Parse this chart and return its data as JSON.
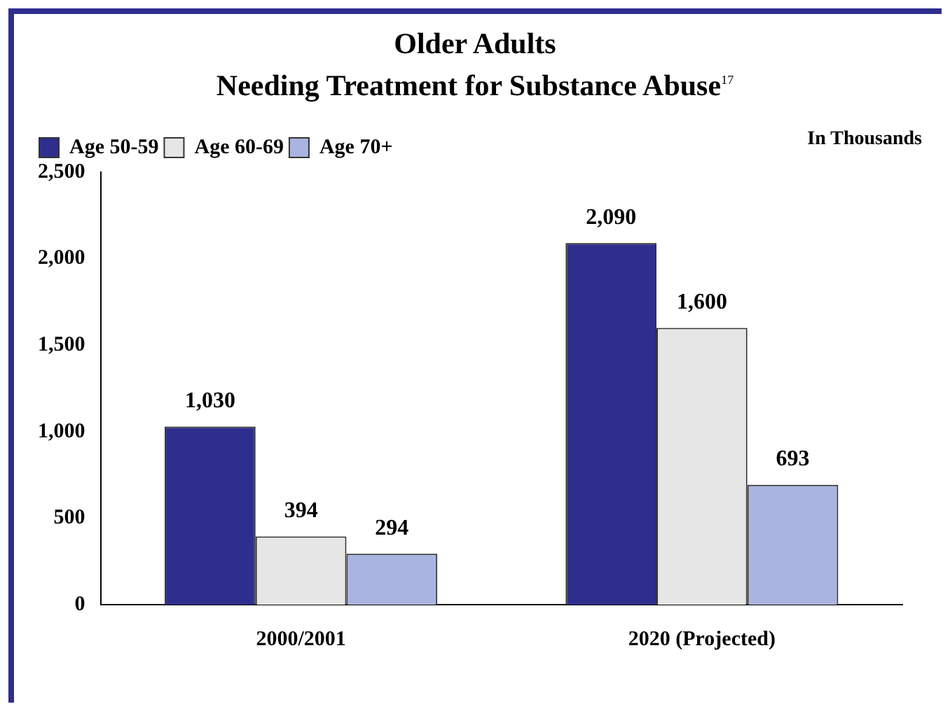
{
  "chart_data": {
    "type": "bar",
    "title": "Older Adults",
    "subtitle": "Needing Treatment for Substance Abuse$^{17}$",
    "categories": [
      "2000/2001",
      "2020 (Projected)"
    ],
    "series": [
      {
        "name": "Age 50-59",
        "color": "#2e2e8f",
        "values": [
          1030,
          2090
        ],
        "value_labels": [
          "1,030",
          "2,090"
        ]
      },
      {
        "name": "Age 60-69",
        "color": "#e6e6e6",
        "values": [
          394,
          1600
        ],
        "value_labels": [
          "394",
          "1,600"
        ]
      },
      {
        "name": "Age 70+",
        "color": "#aab4e0",
        "values": [
          294,
          693
        ],
        "value_labels": [
          "294",
          "693"
        ]
      }
    ],
    "ylim": [
      0,
      2500
    ],
    "yticks": [
      {
        "value": 0,
        "label": "0"
      },
      {
        "value": 500,
        "label": "500"
      },
      {
        "value": 1000,
        "label": "1,000"
      },
      {
        "value": 1500,
        "label": "1,500"
      },
      {
        "value": 2000,
        "label": "2,000"
      },
      {
        "value": 2500,
        "label": "2,500"
      }
    ],
    "grid": false,
    "legend": "top left",
    "annotations": [
      "In Thousands"
    ]
  }
}
